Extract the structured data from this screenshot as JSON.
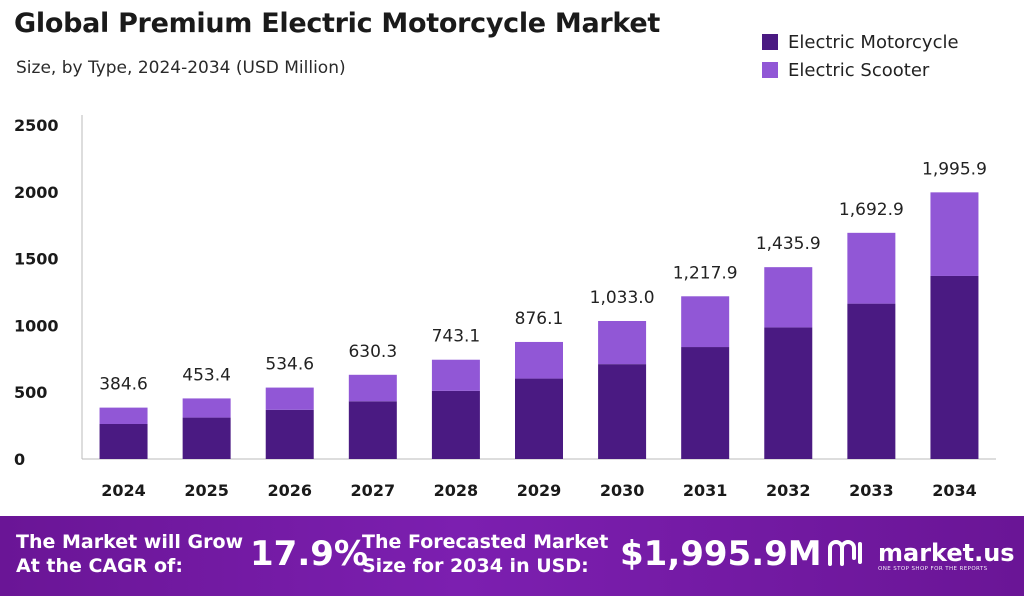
{
  "header": {
    "title": "Global Premium Electric Motorcycle Market",
    "subtitle": "Size, by Type, 2024-2034 (USD Million)"
  },
  "legend": {
    "items": [
      {
        "label": "Electric Motorcycle",
        "color": "#4a1a82"
      },
      {
        "label": "Electric Scooter",
        "color": "#9157d6"
      }
    ]
  },
  "chart_data": {
    "type": "bar",
    "stacked": true,
    "categories": [
      "2024",
      "2025",
      "2026",
      "2027",
      "2028",
      "2029",
      "2030",
      "2031",
      "2032",
      "2033",
      "2034"
    ],
    "series": [
      {
        "name": "Electric Motorcycle",
        "color": "#4a1a82",
        "values": [
          262,
          310,
          368,
          432,
          510,
          602,
          710,
          838,
          985,
          1163,
          1370
        ]
      },
      {
        "name": "Electric Scooter",
        "color": "#9157d6",
        "values": [
          122.6,
          143.4,
          166.6,
          198.3,
          233.1,
          274.1,
          323.0,
          379.9,
          450.9,
          529.9,
          625.9
        ]
      }
    ],
    "totals": [
      384.6,
      453.4,
      534.6,
      630.3,
      743.1,
      876.1,
      1033.0,
      1217.9,
      1435.9,
      1692.9,
      1995.9
    ],
    "total_labels": [
      "384.6",
      "453.4",
      "534.6",
      "630.3",
      "743.1",
      "876.1",
      "1,033.0",
      "1,217.9",
      "1,435.9",
      "1,692.9",
      "1,995.9"
    ],
    "yticks": [
      0,
      500,
      1000,
      1500,
      2000,
      2500
    ],
    "ylim": [
      0,
      2500
    ],
    "legend_position": "top-right",
    "grid": false
  },
  "footer": {
    "cagr_text_line1": "The Market will Grow",
    "cagr_text_line2": "At the CAGR of:",
    "cagr_value": "17.9%",
    "forecast_text_line1": "The Forecasted Market",
    "forecast_text_line2": "Size for 2034 in USD:",
    "forecast_value": "$1,995.9M",
    "brand_name": "market.us",
    "brand_tagline": "ONE STOP SHOP FOR THE REPORTS"
  }
}
